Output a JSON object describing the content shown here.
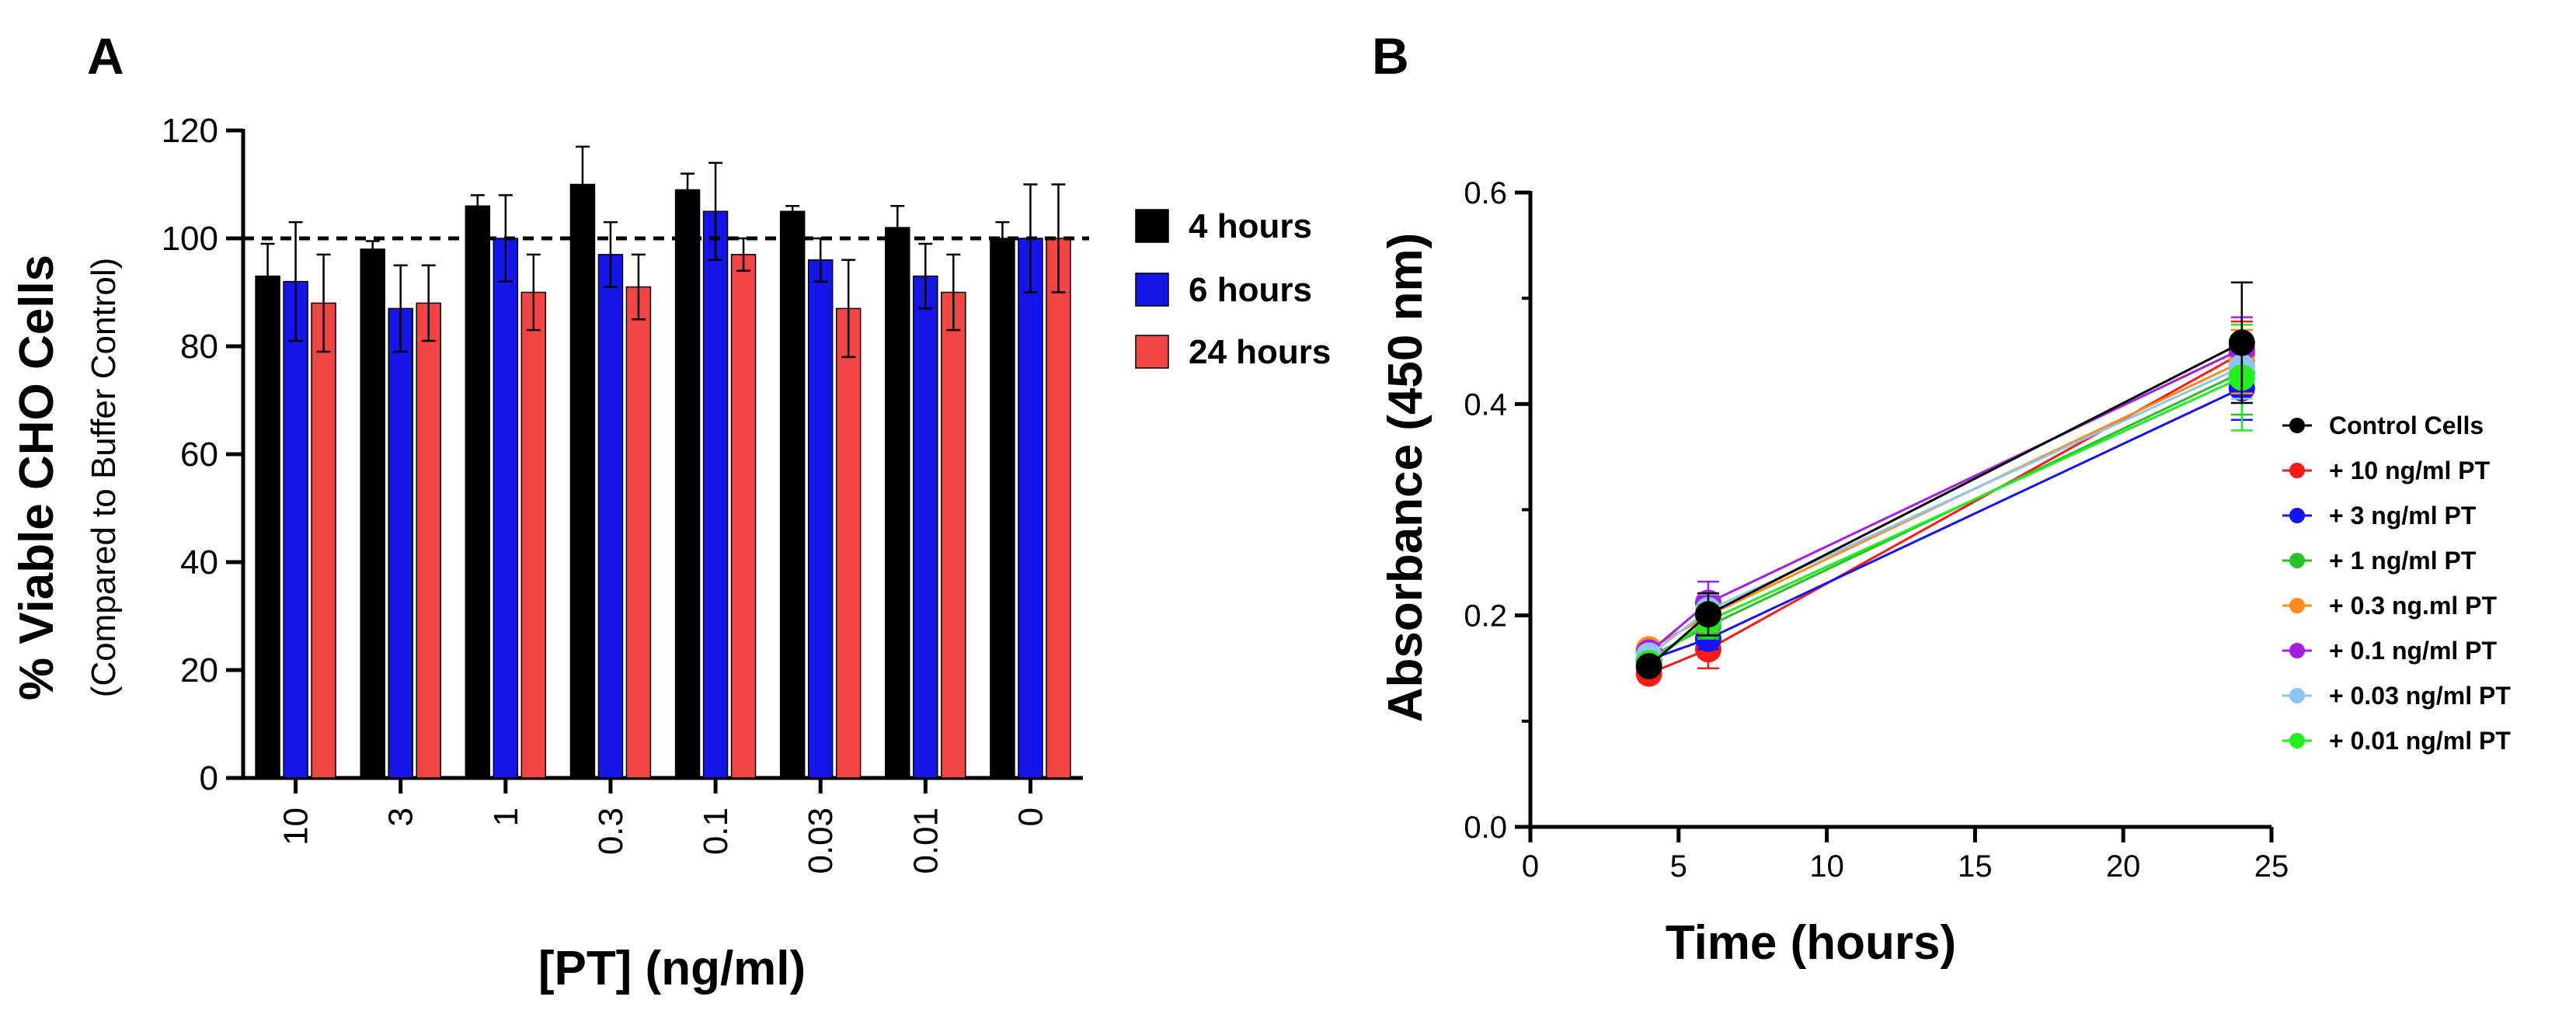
{
  "colors": {
    "4h": "#000000",
    "6h": "#1515e8",
    "24h": "#f04545",
    "control": "#000000",
    "pt10": "#ff1a1a",
    "pt3": "#1414f0",
    "pt1": "#2bbf2b",
    "pt03": "#ff8c1a",
    "pt01": "#a51ee6",
    "pt003": "#8ec4f0",
    "pt001": "#22ee22"
  },
  "chart_data": [
    {
      "panel": "A",
      "type": "bar",
      "xlabel": "[PT] (ng/ml)",
      "ylabel": "% Viable CHO Cells",
      "ylabel2": "(Compared to Buffer Control)",
      "ylim": [
        0,
        120
      ],
      "yticks": [
        "0",
        "20",
        "40",
        "60",
        "80",
        "100",
        "120"
      ],
      "reference_line": 100,
      "categories": [
        "10",
        "3",
        "1",
        "0.3",
        "0.1",
        "0.03",
        "0.01",
        "0"
      ],
      "series": [
        {
          "name": "4 hours",
          "color_key": "4h",
          "values": [
            93,
            98,
            106,
            110,
            109,
            105,
            102,
            100
          ],
          "errors": [
            6,
            1.5,
            2,
            7,
            3,
            1,
            4,
            3
          ]
        },
        {
          "name": "6 hours",
          "color_key": "6h",
          "values": [
            92,
            87,
            100,
            97,
            105,
            96,
            93,
            100
          ],
          "errors": [
            11,
            8,
            8,
            6,
            9,
            4,
            6,
            10
          ]
        },
        {
          "name": "24 hours",
          "color_key": "24h",
          "values": [
            88,
            88,
            90,
            91,
            97,
            87,
            90,
            100
          ],
          "errors": [
            9,
            7,
            7,
            6,
            3,
            9,
            7,
            10
          ]
        }
      ]
    },
    {
      "panel": "B",
      "type": "line",
      "xlabel": "Time (hours)",
      "ylabel": "Absorbance (450 nm)",
      "xlim": [
        0,
        25
      ],
      "ylim": [
        0,
        0.6
      ],
      "xticks": [
        "0",
        "5",
        "10",
        "15",
        "20",
        "25"
      ],
      "yticks": [
        "0.0",
        "0.2",
        "0.4",
        "0.6"
      ],
      "x": [
        4,
        6,
        24
      ],
      "series": [
        {
          "name": "Control Cells",
          "color_key": "control",
          "values": [
            0.152,
            0.201,
            0.458
          ],
          "errors": [
            0.005,
            0.02,
            0.057
          ]
        },
        {
          "name": "+ 10 ng/ml PT",
          "color_key": "pt10",
          "values": [
            0.145,
            0.168,
            0.448
          ],
          "errors": [
            0.005,
            0.018,
            0.03
          ]
        },
        {
          "name": "+ 3 ng/ml PT",
          "color_key": "pt3",
          "values": [
            0.158,
            0.178,
            0.415
          ],
          "errors": [
            0.005,
            0.01,
            0.03
          ]
        },
        {
          "name": "+ 1 ng/ml PT",
          "color_key": "pt1",
          "values": [
            0.16,
            0.19,
            0.43
          ],
          "errors": [
            0.005,
            0.012,
            0.04
          ]
        },
        {
          "name": "+ 0.3 ng.ml PT",
          "color_key": "pt03",
          "values": [
            0.168,
            0.2,
            0.44
          ],
          "errors": [
            0.005,
            0.015,
            0.03
          ]
        },
        {
          "name": "+ 0.1 ng/ml PT",
          "color_key": "pt01",
          "values": [
            0.165,
            0.212,
            0.452
          ],
          "errors": [
            0.005,
            0.02,
            0.03
          ]
        },
        {
          "name": "+ 0.03 ng/ml PT",
          "color_key": "pt003",
          "values": [
            0.162,
            0.205,
            0.435
          ],
          "errors": [
            0.005,
            0.015,
            0.03
          ]
        },
        {
          "name": "+ 0.01 ng/ml PT",
          "color_key": "pt001",
          "values": [
            0.155,
            0.195,
            0.425
          ],
          "errors": [
            0.005,
            0.015,
            0.05
          ]
        }
      ]
    }
  ],
  "panel_labels": {
    "a": "A",
    "b": "B"
  }
}
